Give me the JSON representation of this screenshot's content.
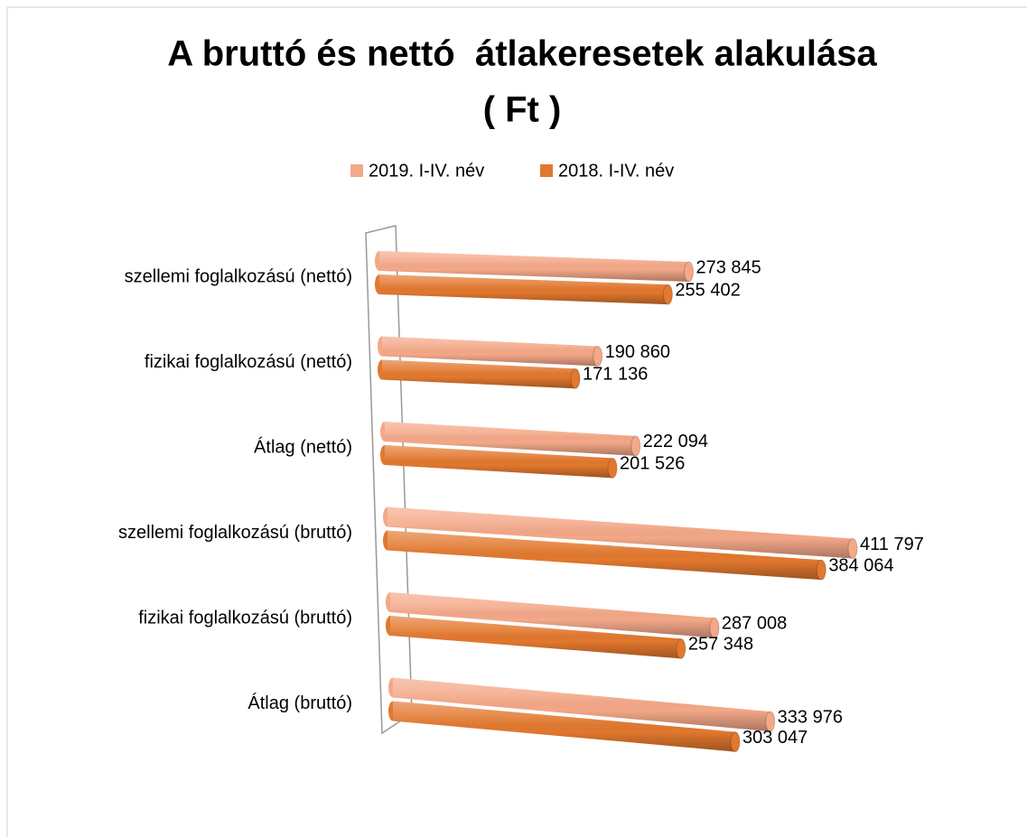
{
  "chart_data": {
    "type": "bar",
    "title": [
      "A bruttó és nettó  átlakeresetek alakulása",
      "( Ft )"
    ],
    "categories": [
      "szellemi foglalkozású (nettó)",
      "fizikai foglalkozású (nettó)",
      "Átlag (nettó)",
      "szellemi foglalkozású (bruttó)",
      "fizikai foglalkozású (bruttó)",
      "Átlag (bruttó)"
    ],
    "series": [
      {
        "name": "2019. I-IV. név",
        "color": "#f4a888",
        "values": [
          273845,
          190860,
          222094,
          411797,
          287008,
          333976
        ],
        "value_labels": [
          "273 845",
          "190 860",
          "222 094",
          "411 797",
          "287 008",
          "333 976"
        ]
      },
      {
        "name": "2018. I-IV. név",
        "color": "#e2782e",
        "values": [
          255402,
          171136,
          201526,
          384064,
          257348,
          303047
        ],
        "value_labels": [
          "255 402",
          "171 136",
          "201 526",
          "384 064",
          "257 348",
          "303 047"
        ]
      }
    ],
    "legend": "top"
  }
}
